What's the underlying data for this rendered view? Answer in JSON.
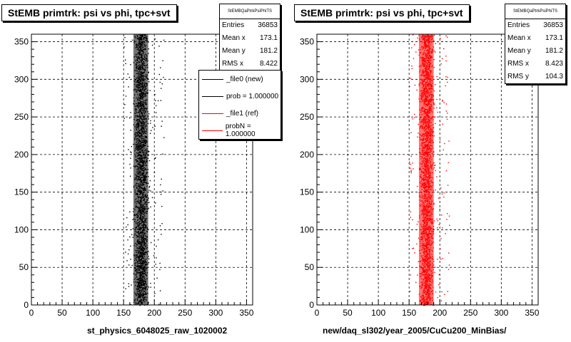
{
  "colors": {
    "black": "#000000",
    "red": "#ff0000"
  },
  "footer": "",
  "panels": [
    {
      "title": "StEMB primtrk: psi vs phi, tpc+svt",
      "xlabel": "st_physics_6048025_raw_1020002",
      "marker_color": "#000000",
      "stats": {
        "name": "StEMBQaPtrkPsiPhiTS",
        "rows": [
          {
            "label": "Entries",
            "value": "36853"
          },
          {
            "label": "Mean x",
            "value": "173.1"
          },
          {
            "label": "Mean y",
            "value": "181.2"
          },
          {
            "label": "RMS x",
            "value": "8.422"
          }
        ]
      },
      "legend": [
        {
          "label": "_file0 (new)",
          "color": "#000000"
        },
        {
          "label": "prob = 1.000000",
          "color": "#000000"
        },
        {
          "label": "_file1 (ref)",
          "color": "#ff0000"
        },
        {
          "label": "probN = 1.000000",
          "color": "#ff0000"
        }
      ]
    },
    {
      "title": "StEMB primtrk: psi vs phi, tpc+svt",
      "xlabel": "new/daq_sl302/year_2005/CuCu200_MinBias/",
      "marker_color": "#ff0000",
      "stats": {
        "name": "StEMBQaPtrkPsiPhiTS",
        "rows": [
          {
            "label": "Entries",
            "value": "36853"
          },
          {
            "label": "Mean x",
            "value": "173.1"
          },
          {
            "label": "Mean y",
            "value": "181.2"
          },
          {
            "label": "RMS x",
            "value": "8.423"
          },
          {
            "label": "RMS y",
            "value": "104.3"
          }
        ]
      },
      "legend": []
    }
  ],
  "chart_data": [
    {
      "type": "scatter",
      "title": "StEMB primtrk: psi vs phi, tpc+svt",
      "xlabel": "st_physics_6048025_raw_1020002",
      "ylabel": "",
      "xlim": [
        0,
        360
      ],
      "ylim": [
        0,
        360
      ],
      "xticks": [
        0,
        50,
        100,
        150,
        200,
        250,
        300,
        350
      ],
      "yticks": [
        0,
        50,
        100,
        150,
        200,
        250,
        300,
        350
      ],
      "grid": true,
      "series": [
        {
          "name": "_file0 (new)",
          "color": "#000000",
          "entries": 36853,
          "mean_x": 173.1,
          "mean_y": 181.2,
          "rms_x": 8.422,
          "band_core_x": [
            163,
            193
          ],
          "band_spread_x": [
            150,
            215
          ]
        }
      ]
    },
    {
      "type": "scatter",
      "title": "StEMB primtrk: psi vs phi, tpc+svt",
      "xlabel": "new/daq_sl302/year_2005/CuCu200_MinBias/",
      "ylabel": "",
      "xlim": [
        0,
        360
      ],
      "ylim": [
        0,
        360
      ],
      "xticks": [
        0,
        50,
        100,
        150,
        200,
        250,
        300,
        350
      ],
      "yticks": [
        0,
        50,
        100,
        150,
        200,
        250,
        300,
        350
      ],
      "grid": true,
      "series": [
        {
          "name": "_file1 (ref)",
          "color": "#ff0000",
          "entries": 36853,
          "mean_x": 173.1,
          "mean_y": 181.2,
          "rms_x": 8.423,
          "rms_y": 104.3,
          "band_core_x": [
            163,
            193
          ],
          "band_spread_x": [
            150,
            215
          ]
        }
      ]
    }
  ]
}
